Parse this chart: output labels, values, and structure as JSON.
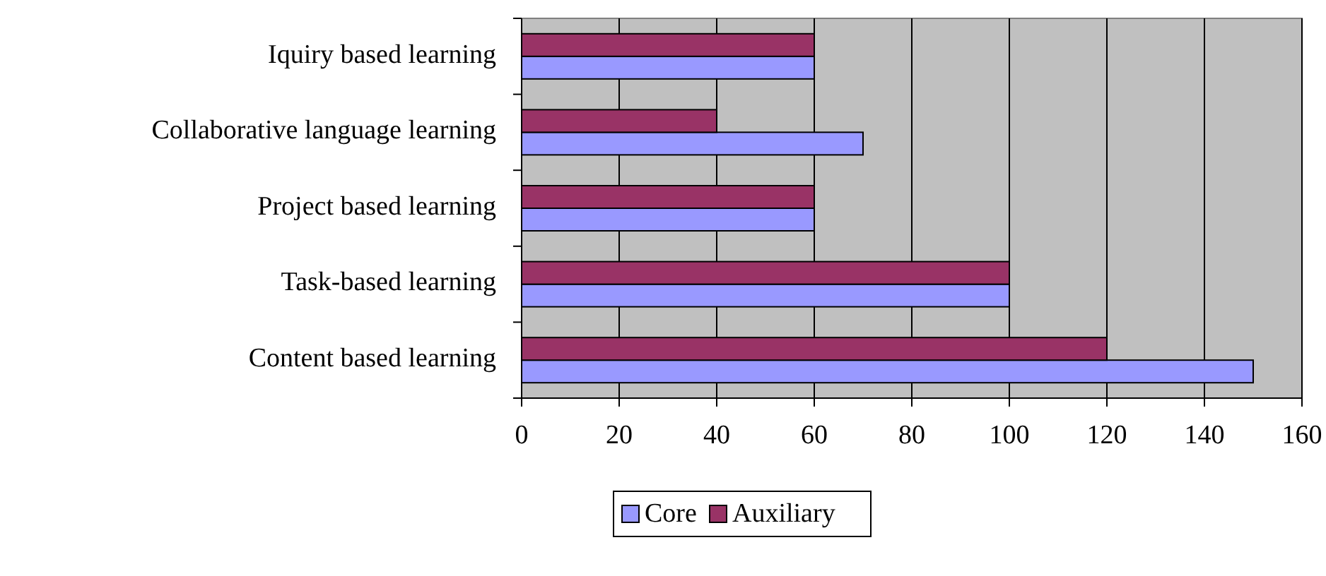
{
  "chart_data": {
    "type": "bar",
    "orientation": "horizontal",
    "categories": [
      "Iquiry based learning",
      "Collaborative language learning",
      "Project based learning",
      "Task-based learning",
      "Content based learning"
    ],
    "series": [
      {
        "name": "Core",
        "color": "#9999ff",
        "values": [
          60,
          70,
          60,
          100,
          150
        ]
      },
      {
        "name": "Auxiliary",
        "color": "#993366",
        "values": [
          60,
          40,
          60,
          100,
          120
        ]
      }
    ],
    "xlim": [
      0,
      160
    ],
    "xticks": [
      0,
      20,
      40,
      60,
      80,
      100,
      120,
      140,
      160
    ],
    "grid": "x",
    "legend": "bottom"
  }
}
